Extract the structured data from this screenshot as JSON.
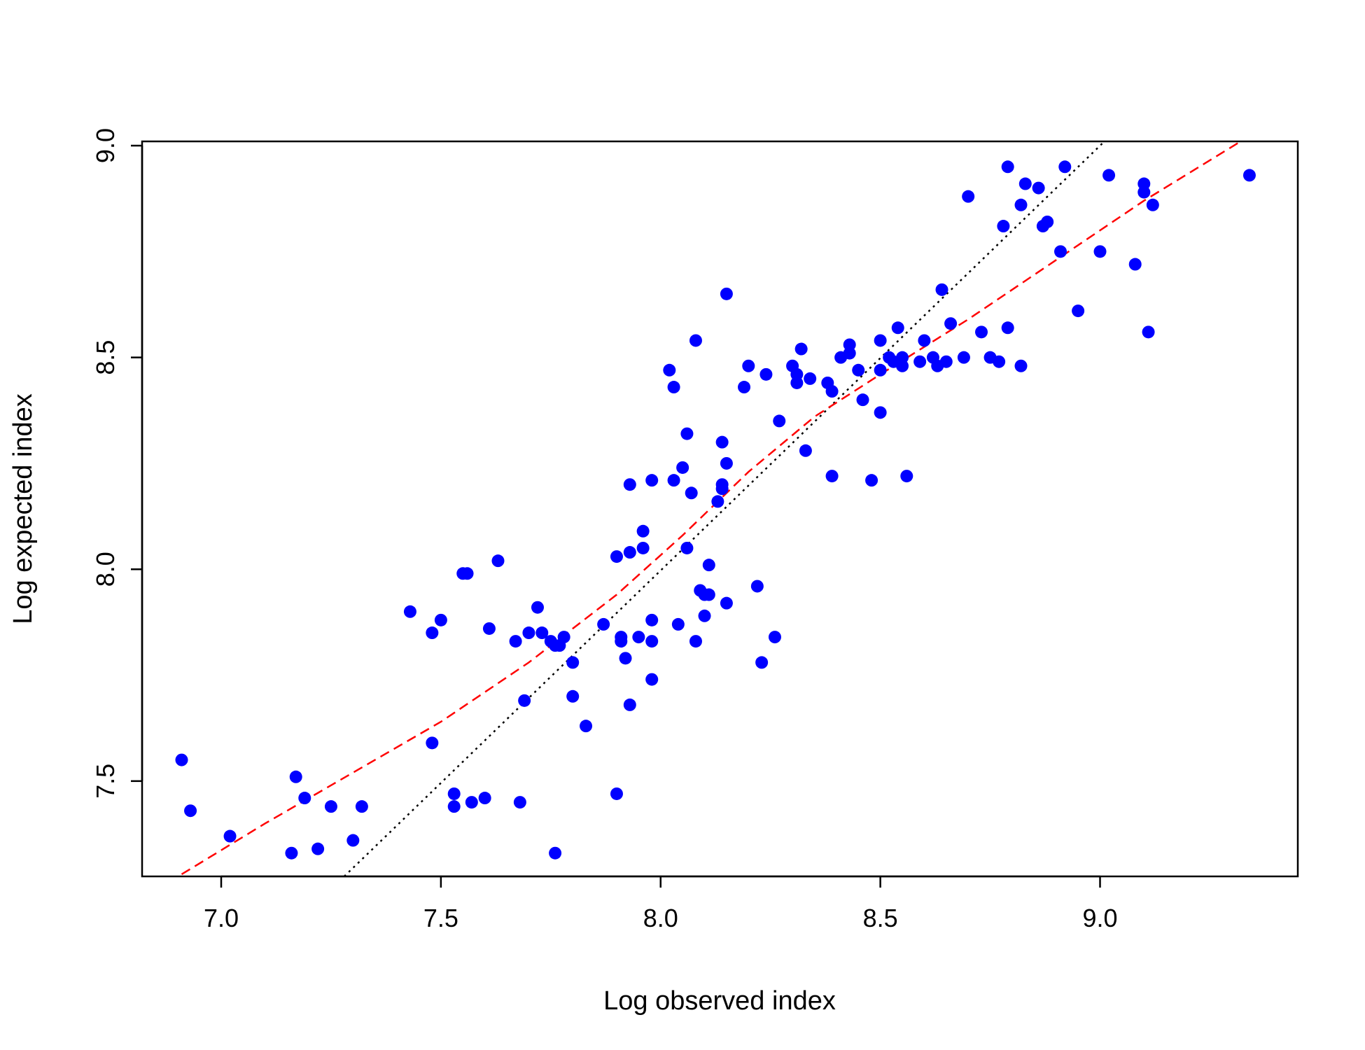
{
  "chart_data": {
    "type": "scatter",
    "title": "",
    "xlabel": "Log observed index",
    "ylabel": "Log expected index",
    "xlim": [
      6.82,
      9.45
    ],
    "ylim": [
      7.275,
      9.01
    ],
    "x_ticks": [
      "7.0",
      "7.5",
      "8.0",
      "8.5",
      "9.0"
    ],
    "y_ticks": [
      "7.5",
      "8.0",
      "8.5",
      "9.0"
    ],
    "grid": false,
    "legend": "none",
    "point_color": "#0000ff",
    "series": [
      {
        "points": [
          [
            6.91,
            7.55
          ],
          [
            6.93,
            7.43
          ],
          [
            7.02,
            7.37
          ],
          [
            7.16,
            7.33
          ],
          [
            7.17,
            7.51
          ],
          [
            7.19,
            7.46
          ],
          [
            7.22,
            7.34
          ],
          [
            7.25,
            7.44
          ],
          [
            7.3,
            7.36
          ],
          [
            7.32,
            7.44
          ],
          [
            7.43,
            7.9
          ],
          [
            7.48,
            7.85
          ],
          [
            7.48,
            7.59
          ],
          [
            7.5,
            7.88
          ],
          [
            7.53,
            7.47
          ],
          [
            7.53,
            7.44
          ],
          [
            7.55,
            7.99
          ],
          [
            7.56,
            7.99
          ],
          [
            7.57,
            7.45
          ],
          [
            7.6,
            7.46
          ],
          [
            7.61,
            7.86
          ],
          [
            7.63,
            8.02
          ],
          [
            7.67,
            7.83
          ],
          [
            7.68,
            7.45
          ],
          [
            7.69,
            7.69
          ],
          [
            7.7,
            7.85
          ],
          [
            7.72,
            7.91
          ],
          [
            7.73,
            7.85
          ],
          [
            7.75,
            7.83
          ],
          [
            7.76,
            7.82
          ],
          [
            7.77,
            7.82
          ],
          [
            7.78,
            7.84
          ],
          [
            7.76,
            7.33
          ],
          [
            7.8,
            7.7
          ],
          [
            7.8,
            7.78
          ],
          [
            7.83,
            7.63
          ],
          [
            7.87,
            7.87
          ],
          [
            7.9,
            8.03
          ],
          [
            7.9,
            7.47
          ],
          [
            7.91,
            7.84
          ],
          [
            7.91,
            7.83
          ],
          [
            7.92,
            7.79
          ],
          [
            7.93,
            7.68
          ],
          [
            7.93,
            8.2
          ],
          [
            7.93,
            8.04
          ],
          [
            7.95,
            7.84
          ],
          [
            7.96,
            8.05
          ],
          [
            7.96,
            8.09
          ],
          [
            7.98,
            8.21
          ],
          [
            7.98,
            7.88
          ],
          [
            7.98,
            7.83
          ],
          [
            7.98,
            7.74
          ],
          [
            8.02,
            8.47
          ],
          [
            8.03,
            8.43
          ],
          [
            8.03,
            8.21
          ],
          [
            8.04,
            7.87
          ],
          [
            8.05,
            8.24
          ],
          [
            8.06,
            8.32
          ],
          [
            8.06,
            8.05
          ],
          [
            8.07,
            8.18
          ],
          [
            8.08,
            8.54
          ],
          [
            8.08,
            7.83
          ],
          [
            8.09,
            7.95
          ],
          [
            8.1,
            7.89
          ],
          [
            8.1,
            7.94
          ],
          [
            8.11,
            7.94
          ],
          [
            8.11,
            8.01
          ],
          [
            8.13,
            8.16
          ],
          [
            8.14,
            8.19
          ],
          [
            8.14,
            8.2
          ],
          [
            8.14,
            8.3
          ],
          [
            8.15,
            8.65
          ],
          [
            8.15,
            8.25
          ],
          [
            8.15,
            7.92
          ],
          [
            8.19,
            8.43
          ],
          [
            8.2,
            8.48
          ],
          [
            8.22,
            7.96
          ],
          [
            8.23,
            7.78
          ],
          [
            8.24,
            8.46
          ],
          [
            8.26,
            7.84
          ],
          [
            8.27,
            8.35
          ],
          [
            8.3,
            8.48
          ],
          [
            8.31,
            8.44
          ],
          [
            8.31,
            8.46
          ],
          [
            8.32,
            8.52
          ],
          [
            8.33,
            8.28
          ],
          [
            8.34,
            8.45
          ],
          [
            8.38,
            8.44
          ],
          [
            8.39,
            8.42
          ],
          [
            8.39,
            8.22
          ],
          [
            8.41,
            8.5
          ],
          [
            8.43,
            8.51
          ],
          [
            8.43,
            8.53
          ],
          [
            8.45,
            8.47
          ],
          [
            8.46,
            8.4
          ],
          [
            8.48,
            8.21
          ],
          [
            8.5,
            8.54
          ],
          [
            8.5,
            8.37
          ],
          [
            8.5,
            8.47
          ],
          [
            8.52,
            8.5
          ],
          [
            8.53,
            8.49
          ],
          [
            8.54,
            8.57
          ],
          [
            8.55,
            8.48
          ],
          [
            8.55,
            8.5
          ],
          [
            8.56,
            8.22
          ],
          [
            8.59,
            8.49
          ],
          [
            8.6,
            8.54
          ],
          [
            8.62,
            8.5
          ],
          [
            8.63,
            8.48
          ],
          [
            8.64,
            8.66
          ],
          [
            8.65,
            8.49
          ],
          [
            8.66,
            8.58
          ],
          [
            8.69,
            8.5
          ],
          [
            8.7,
            8.88
          ],
          [
            8.73,
            8.56
          ],
          [
            8.75,
            8.5
          ],
          [
            8.77,
            8.49
          ],
          [
            8.78,
            8.81
          ],
          [
            8.79,
            8.95
          ],
          [
            8.79,
            8.57
          ],
          [
            8.82,
            8.86
          ],
          [
            8.82,
            8.48
          ],
          [
            8.83,
            8.91
          ],
          [
            8.86,
            8.9
          ],
          [
            8.87,
            8.81
          ],
          [
            8.88,
            8.82
          ],
          [
            8.91,
            8.75
          ],
          [
            8.92,
            8.95
          ],
          [
            8.95,
            8.61
          ],
          [
            9.0,
            8.75
          ],
          [
            9.02,
            8.93
          ],
          [
            9.08,
            8.72
          ],
          [
            9.1,
            8.91
          ],
          [
            9.1,
            8.89
          ],
          [
            9.11,
            8.56
          ],
          [
            9.12,
            8.86
          ],
          [
            9.34,
            8.93
          ]
        ]
      }
    ],
    "reference_line": {
      "style": "dotted",
      "color": "#000000",
      "points": [
        [
          7.28,
          7.275
        ],
        [
          9.01,
          9.01
        ]
      ]
    },
    "smooth_line": {
      "style": "dashed",
      "color": "#ff0000",
      "points": [
        [
          6.91,
          7.28
        ],
        [
          7.1,
          7.4
        ],
        [
          7.3,
          7.52
        ],
        [
          7.5,
          7.64
        ],
        [
          7.7,
          7.78
        ],
        [
          7.9,
          7.94
        ],
        [
          8.05,
          8.08
        ],
        [
          8.2,
          8.23
        ],
        [
          8.35,
          8.36
        ],
        [
          8.5,
          8.46
        ],
        [
          8.7,
          8.59
        ],
        [
          8.9,
          8.73
        ],
        [
          9.1,
          8.87
        ],
        [
          9.32,
          9.01
        ]
      ]
    }
  }
}
